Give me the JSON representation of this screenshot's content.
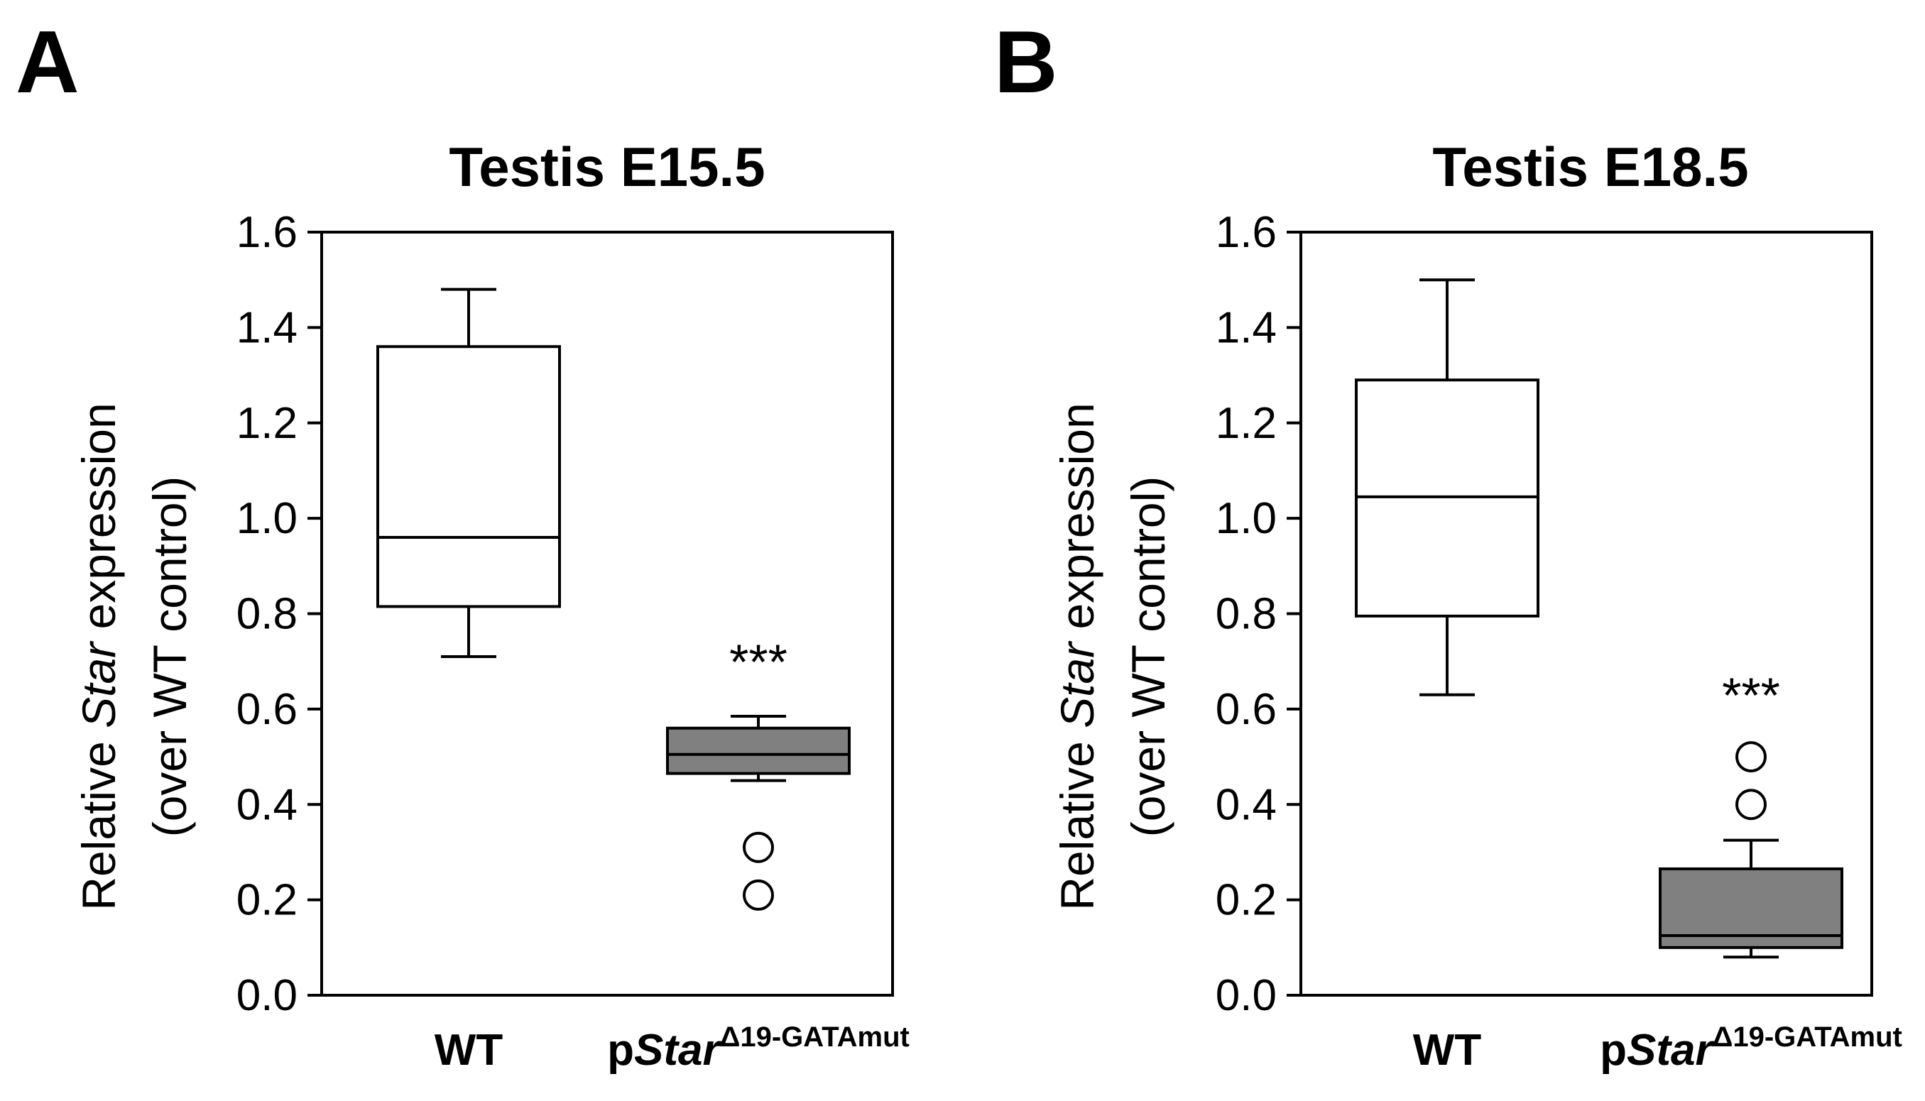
{
  "figure": {
    "panels": [
      "A",
      "B"
    ]
  },
  "chart_data": [
    {
      "type": "boxplot",
      "panel": "A",
      "title": "Testis E15.5",
      "ylabel": {
        "prefix": "Relative ",
        "gene": "Star",
        "suffix": " expression",
        "line2": "(over WT control)"
      },
      "xlabel": "",
      "ylim": [
        0,
        1.6
      ],
      "yticks": [
        "0.0",
        "0.2",
        "0.4",
        "0.6",
        "0.8",
        "1.0",
        "1.2",
        "1.4",
        "1.6"
      ],
      "categories": [
        {
          "prefix": "WT",
          "italic": "",
          "sup": ""
        },
        {
          "prefix": "p",
          "italic": "Star",
          "sup": "Δ19-GATAmut"
        }
      ],
      "boxes": [
        {
          "name": "WT",
          "whisker_low": 0.71,
          "q1": 0.815,
          "median": 0.96,
          "q3": 1.36,
          "whisker_high": 1.48,
          "outliers": [],
          "fill": "#ffffff"
        },
        {
          "name": "pStarΔ19-GATAmut",
          "whisker_low": 0.45,
          "q1": 0.465,
          "median": 0.505,
          "q3": 0.56,
          "whisker_high": 0.585,
          "outliers": [
            0.31,
            0.21
          ],
          "fill": "#808080"
        }
      ],
      "significance": [
        {
          "box": 1,
          "label": "***",
          "y": 0.7
        }
      ]
    },
    {
      "type": "boxplot",
      "panel": "B",
      "title": "Testis E18.5",
      "ylabel": {
        "prefix": "Relative ",
        "gene": "Star",
        "suffix": " expression",
        "line2": "(over WT control)"
      },
      "xlabel": "",
      "ylim": [
        0,
        1.6
      ],
      "yticks": [
        "0.0",
        "0.2",
        "0.4",
        "0.6",
        "0.8",
        "1.0",
        "1.2",
        "1.4",
        "1.6"
      ],
      "categories": [
        {
          "prefix": "WT",
          "italic": "",
          "sup": ""
        },
        {
          "prefix": "p",
          "italic": "Star",
          "sup": "Δ19-GATAmut"
        }
      ],
      "boxes": [
        {
          "name": "WT",
          "whisker_low": 0.63,
          "q1": 0.795,
          "median": 1.045,
          "q3": 1.29,
          "whisker_high": 1.5,
          "outliers": [],
          "fill": "#ffffff"
        },
        {
          "name": "pStarΔ19-GATAmut",
          "whisker_low": 0.08,
          "q1": 0.1,
          "median": 0.125,
          "q3": 0.265,
          "whisker_high": 0.325,
          "outliers": [
            0.5,
            0.4
          ],
          "fill": "#808080"
        }
      ],
      "significance": [
        {
          "box": 1,
          "label": "***",
          "y": 0.63
        }
      ]
    }
  ]
}
